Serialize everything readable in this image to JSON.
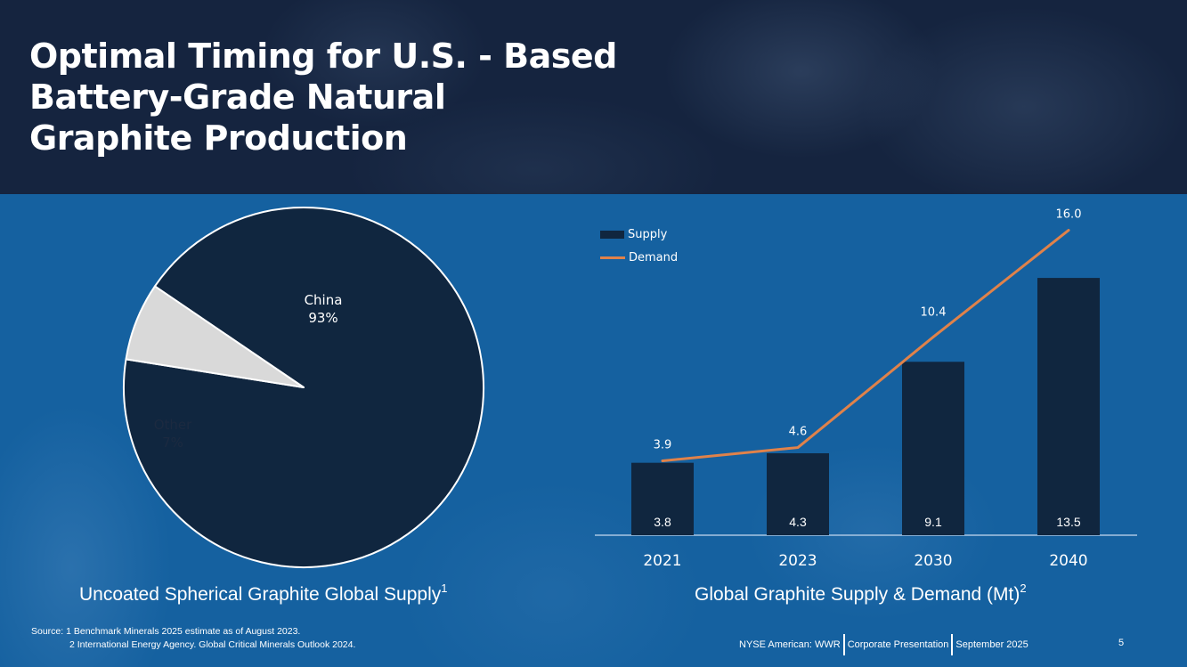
{
  "slide": {
    "title": "Optimal Timing for U.S. - Based\nBattery-Grade Natural\nGraphite Production",
    "colors": {
      "header_bg": "#15243f",
      "body_bg": "#1561a0",
      "dark_navy": "#10263f",
      "other_slice": "#d9d9d9",
      "demand_line": "#e0824a",
      "text": "#ffffff"
    },
    "source_prefix": "Source:",
    "sources": [
      "1 Benchmark Minerals 2025 estimate as of August 2023.",
      "2 International Energy Agency. Global Critical Minerals Outlook 2024."
    ],
    "footer": {
      "ticker": "NYSE American: WWR",
      "doc": "Corporate Presentation",
      "date": "September 2025",
      "page": "5"
    }
  },
  "pie": {
    "title": "Uncoated Spherical Graphite Global Supply",
    "title_sup": "1",
    "slices": [
      {
        "label": "China",
        "value_label": "93%",
        "value": 93,
        "color": "#10263f"
      },
      {
        "label": "Other",
        "value_label": "7%",
        "value": 7,
        "color": "#d9d9d9"
      }
    ]
  },
  "bar": {
    "title": "Global Graphite Supply & Demand (Mt)",
    "title_sup": "2",
    "legend": [
      {
        "label": "Supply",
        "type": "bar"
      },
      {
        "label": "Demand",
        "type": "line"
      }
    ]
  },
  "chart_data": [
    {
      "type": "pie",
      "title": "Uncoated Spherical Graphite Global Supply",
      "categories": [
        "China",
        "Other"
      ],
      "values": [
        93,
        7
      ],
      "unit": "%",
      "legend_position": "none (labels on slices)"
    },
    {
      "type": "bar",
      "title": "Global Graphite Supply & Demand (Mt)",
      "categories": [
        "2021",
        "2023",
        "2030",
        "2040"
      ],
      "series": [
        {
          "name": "Supply",
          "type": "bar",
          "values": [
            3.8,
            4.3,
            9.1,
            13.5
          ]
        },
        {
          "name": "Demand",
          "type": "line",
          "values": [
            3.9,
            4.6,
            10.4,
            16.0
          ]
        }
      ],
      "xlabel": "",
      "ylabel": "Mt",
      "ylim": [
        0,
        16.5
      ],
      "grid": false,
      "legend_position": "top-left"
    }
  ]
}
